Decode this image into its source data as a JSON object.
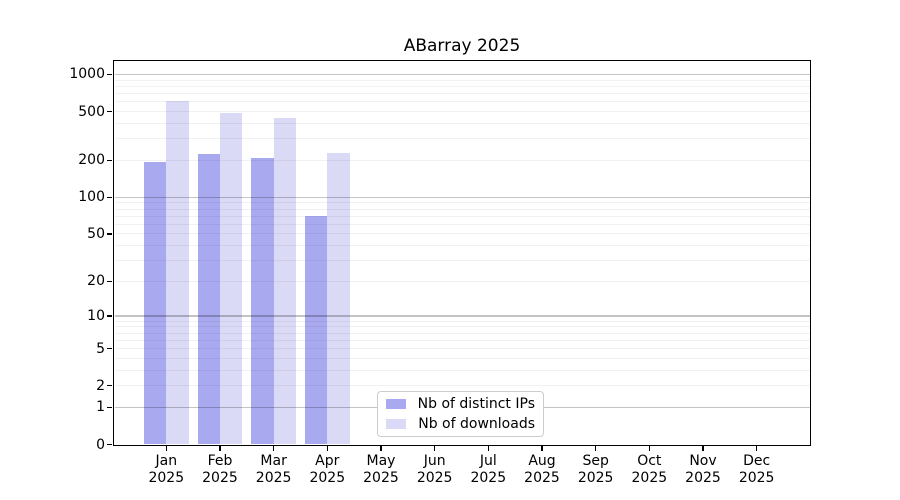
{
  "title": "ABarray 2025",
  "legend": {
    "items": [
      {
        "label": "Nb of distinct IPs",
        "color": "#a9a9f0"
      },
      {
        "label": "Nb of downloads",
        "color": "#dadaf7"
      }
    ]
  },
  "chart_data": {
    "type": "bar",
    "title": "ABarray 2025",
    "categories": [
      "Jan",
      "Feb",
      "Mar",
      "Apr",
      "May",
      "Jun",
      "Jul",
      "Aug",
      "Sep",
      "Oct",
      "Nov",
      "Dec"
    ],
    "year_label": "2025",
    "series": [
      {
        "name": "Nb of distinct IPs",
        "color": "#a9a9f0",
        "values": [
          195,
          225,
          208,
          70,
          null,
          null,
          null,
          null,
          null,
          null,
          null,
          null
        ]
      },
      {
        "name": "Nb of downloads",
        "color": "#dadaf7",
        "values": [
          605,
          490,
          445,
          230,
          null,
          null,
          null,
          null,
          null,
          null,
          null,
          null
        ]
      }
    ],
    "xlabel": "",
    "ylabel": "",
    "yscale": "log10(1+v)",
    "yticks": [
      0,
      1,
      2,
      5,
      10,
      20,
      50,
      100,
      200,
      500,
      1000
    ],
    "ylim": [
      0,
      1283
    ],
    "grid": "both",
    "minor_gridlines_per_decade": [
      2,
      3,
      4,
      5,
      6,
      7,
      8,
      9
    ],
    "legend_position": "lower center"
  }
}
